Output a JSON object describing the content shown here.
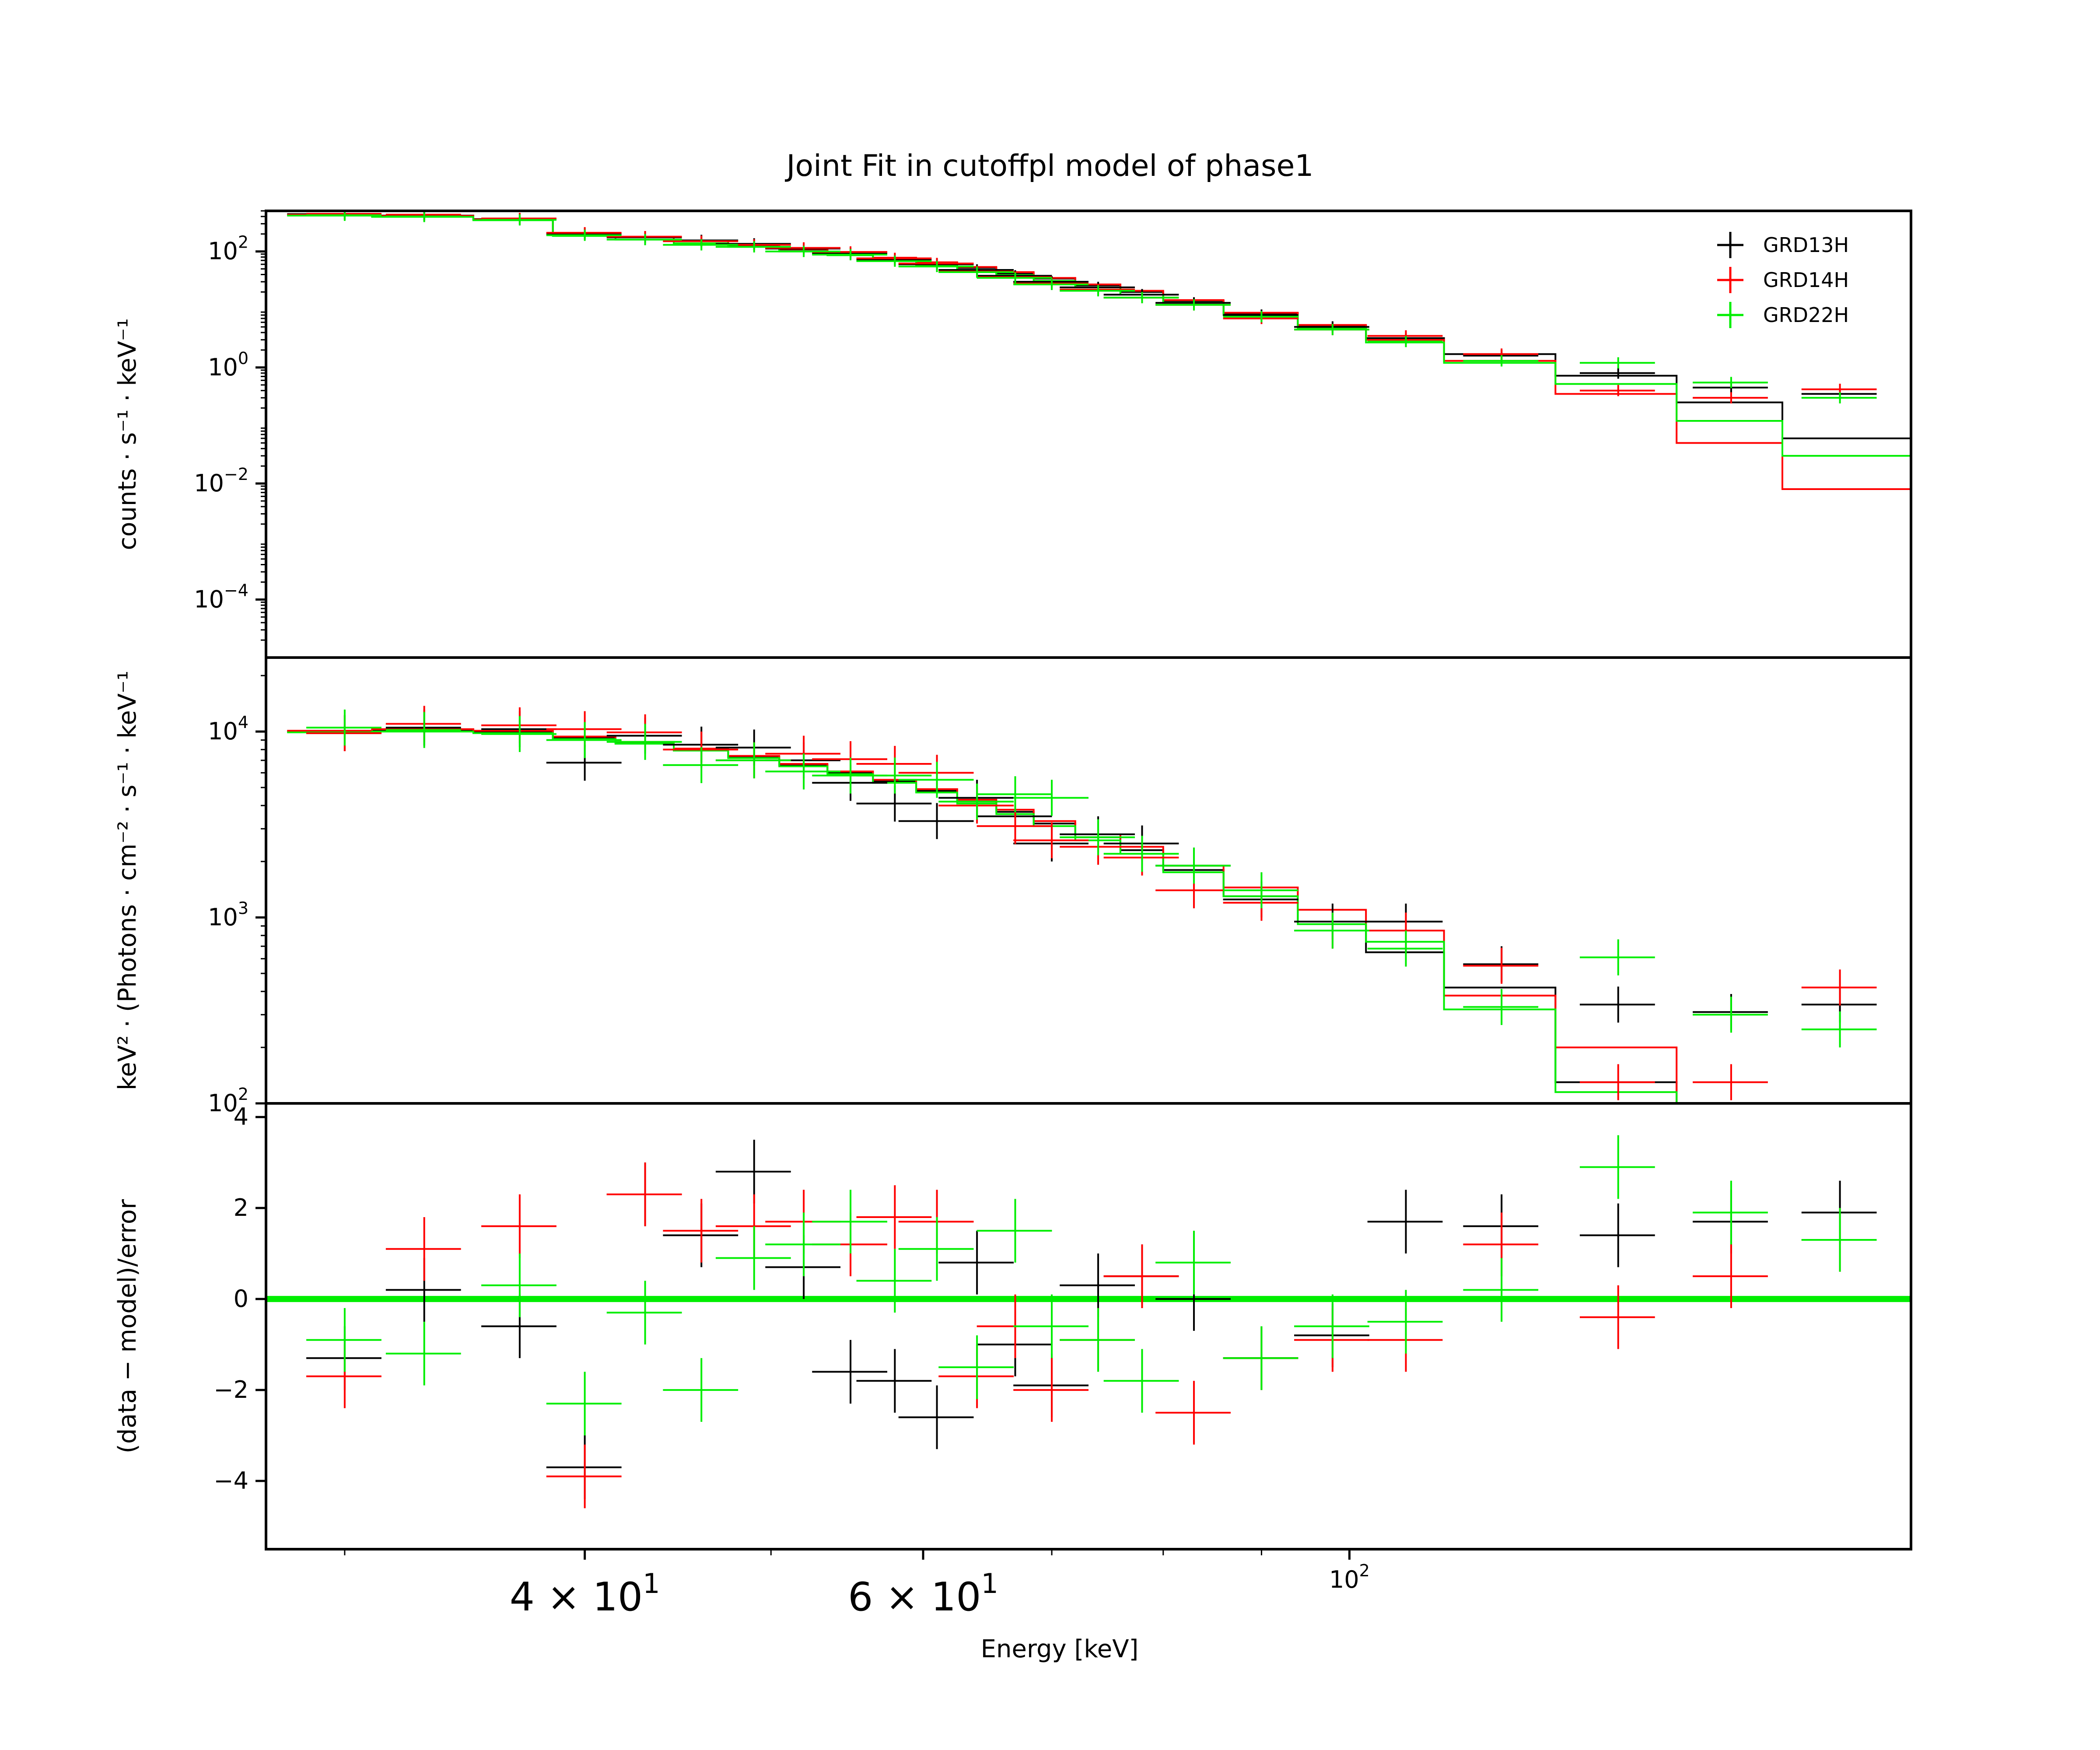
{
  "chart_data": {
    "type": "scatter",
    "title": "Joint Fit  in cutoffpl model of phase1",
    "xlabel": "Energy [keV]",
    "xscale": "log",
    "xlim": [
      27.3,
      196
    ],
    "xticks": [
      {
        "value": 40,
        "mantissa": "4",
        "times": "×",
        "base": "10",
        "exp": "1"
      },
      {
        "value": 60,
        "mantissa": "6",
        "times": "×",
        "base": "10",
        "exp": "1"
      },
      {
        "value": 100,
        "mantissa": "",
        "times": "",
        "base": "10",
        "exp": "2"
      }
    ],
    "colors": {
      "GRD13H": "#000000",
      "GRD14H": "#ff0000",
      "GRD22H": "#00ee00"
    },
    "legend": {
      "placement": "top-right",
      "entries": [
        "GRD13H",
        "GRD14H",
        "GRD22H"
      ]
    },
    "panels": [
      {
        "id": "counts",
        "ylabel": "counts · s⁻¹ · keV⁻¹",
        "yscale": "log",
        "ylim": [
          1e-05,
          500
        ],
        "yticks": [
          {
            "value": 100,
            "base": "10",
            "exp": "2"
          },
          {
            "value": 1,
            "base": "10",
            "exp": "0"
          },
          {
            "value": 0.01,
            "base": "10",
            "exp": "−2"
          },
          {
            "value": 0.0001,
            "base": "10",
            "exp": "−4"
          }
        ],
        "series": [
          {
            "name": "GRD13H",
            "x": [
              30,
              33,
              37,
              40,
              43,
              46,
              49,
              52,
              55,
              58,
              61,
              64,
              67,
              70,
              74,
              78,
              83,
              90,
              98,
              107,
              120,
              138,
              158,
              180
            ],
            "y": [
              440,
              420,
              360,
              200,
              175,
              155,
              135,
              112,
              93,
              72,
              60,
              48,
              38,
              30,
              24,
              18,
              13,
              8,
              5,
              3.2,
              1.6,
              0.8,
              0.45,
              0.35
            ]
          },
          {
            "name": "GRD14H",
            "x": [
              30,
              33,
              37,
              40,
              43,
              46,
              49,
              52,
              55,
              58,
              61,
              64,
              67,
              70,
              74,
              78,
              83,
              90,
              98,
              107,
              120,
              138,
              158,
              180
            ],
            "y": [
              445,
              430,
              370,
              210,
              180,
              150,
              130,
              115,
              98,
              76,
              62,
              45,
              36,
              28,
              22,
              16,
              12,
              7,
              4.5,
              3.5,
              1.7,
              0.4,
              0.3,
              0.42
            ]
          },
          {
            "name": "GRD22H",
            "x": [
              30,
              33,
              37,
              40,
              43,
              46,
              49,
              52,
              55,
              58,
              61,
              64,
              67,
              70,
              74,
              78,
              83,
              90,
              98,
              107,
              120,
              138,
              158,
              180
            ],
            "y": [
              420,
              400,
              350,
              190,
              160,
              130,
              120,
              100,
              88,
              68,
              55,
              44,
              35,
              27,
              21,
              16,
              12,
              7.5,
              4.5,
              2.8,
              1.3,
              1.2,
              0.55,
              0.3
            ]
          }
        ],
        "models": [
          {
            "name": "GRD13H",
            "edges": [
              28,
              31,
              35,
              38.5,
              41.5,
              44.5,
              47.5,
              50.5,
              53.5,
              56.5,
              59.5,
              62.5,
              65.5,
              68.5,
              72,
              76,
              80,
              86,
              94,
              102,
              112,
              128,
              148,
              168,
              196
            ],
            "y": [
              440,
              415,
              360,
              200,
              175,
              150,
              128,
              108,
              92,
              76,
              63,
              52,
              42,
              34,
              26,
              20,
              14,
              8.5,
              5.2,
              3.2,
              1.7,
              0.72,
              0.25,
              0.06
            ]
          },
          {
            "name": "GRD14H",
            "edges": [
              28,
              31,
              35,
              38.5,
              41.5,
              44.5,
              47.5,
              50.5,
              53.5,
              56.5,
              59.5,
              62.5,
              65.5,
              68.5,
              72,
              76,
              80,
              86,
              94,
              102,
              112,
              128,
              148,
              168,
              196
            ],
            "y": [
              430,
              410,
              355,
              205,
              178,
              152,
              130,
              110,
              94,
              78,
              65,
              54,
              44,
              35,
              27,
              21,
              14.5,
              8.8,
              5.4,
              3.0,
              1.3,
              0.35,
              0.05,
              0.008
            ]
          },
          {
            "name": "GRD22H",
            "edges": [
              28,
              31,
              35,
              38.5,
              41.5,
              44.5,
              47.5,
              50.5,
              53.5,
              56.5,
              59.5,
              62.5,
              65.5,
              68.5,
              72,
              76,
              80,
              86,
              94,
              102,
              112,
              128,
              148,
              168,
              196
            ],
            "y": [
              415,
              395,
              345,
              185,
              160,
              138,
              120,
              100,
              86,
              70,
              58,
              48,
              39,
              31,
              24,
              18,
              13,
              8,
              4.8,
              2.7,
              1.2,
              0.52,
              0.12,
              0.03
            ]
          }
        ]
      },
      {
        "id": "unfolded",
        "ylabel": "keV² · (Photons · cm⁻² · s⁻¹ · keV⁻¹",
        "yscale": "log",
        "ylim": [
          100,
          25000
        ],
        "yticks": [
          {
            "value": 10000,
            "base": "10",
            "exp": "4"
          },
          {
            "value": 1000,
            "base": "10",
            "exp": "3"
          },
          {
            "value": 100,
            "base": "10",
            "exp": "2"
          }
        ],
        "series": [
          {
            "name": "GRD13H",
            "x": [
              30,
              33,
              37,
              40,
              43,
              46,
              49,
              52,
              55,
              58,
              61,
              64,
              67,
              70,
              74,
              78,
              83,
              90,
              98,
              107,
              120,
              138,
              158,
              180
            ],
            "y": [
              9800,
              10500,
              10300,
              6800,
              9500,
              8500,
              8200,
              7000,
              5300,
              4100,
              3300,
              4400,
              3500,
              2500,
              2800,
              2500,
              1900,
              1250,
              950,
              950,
              560,
              340,
              310,
              340
            ]
          },
          {
            "name": "GRD14H",
            "x": [
              30,
              33,
              37,
              40,
              43,
              46,
              49,
              52,
              55,
              58,
              61,
              64,
              67,
              70,
              74,
              78,
              83,
              90,
              98,
              107,
              120,
              138,
              158,
              180
            ],
            "y": [
              9800,
              11000,
              10800,
              10300,
              9900,
              8000,
              7000,
              7600,
              7100,
              6700,
              6000,
              4000,
              3100,
              2600,
              2400,
              2100,
              1400,
              1200,
              850,
              850,
              550,
              130,
              130,
              420
            ]
          },
          {
            "name": "GRD22H",
            "x": [
              30,
              33,
              37,
              40,
              43,
              46,
              49,
              52,
              55,
              58,
              61,
              64,
              67,
              70,
              74,
              78,
              83,
              90,
              98,
              107,
              120,
              138,
              158,
              180
            ],
            "y": [
              10500,
              10200,
              9700,
              9000,
              8800,
              6600,
              7000,
              6100,
              5800,
              5800,
              5500,
              4200,
              4600,
              4400,
              2700,
              2200,
              1900,
              1400,
              850,
              680,
              330,
              610,
              300,
              250
            ]
          }
        ],
        "models": [
          {
            "name": "GRD13H",
            "edges": [
              28,
              31,
              35,
              38.5,
              41.5,
              44.5,
              47.5,
              50.5,
              53.5,
              56.5,
              59.5,
              62.5,
              65.5,
              68.5,
              72,
              76,
              80,
              86,
              94,
              102,
              112,
              128,
              148,
              168,
              196
            ],
            "y": [
              10000,
              10200,
              10000,
              9200,
              8700,
              8000,
              7300,
              6600,
              6000,
              5400,
              4800,
              4200,
              3700,
              3200,
              2700,
              2300,
              1800,
              1300,
              950,
              650,
              420,
              130,
              90,
              70
            ]
          },
          {
            "name": "GRD14H",
            "edges": [
              28,
              31,
              35,
              38.5,
              41.5,
              44.5,
              47.5,
              50.5,
              53.5,
              56.5,
              59.5,
              62.5,
              65.5,
              68.5,
              72,
              76,
              80,
              86,
              94,
              102,
              112,
              128,
              148,
              168,
              196
            ],
            "y": [
              10100,
              10300,
              10100,
              9400,
              8800,
              8100,
              7400,
              6700,
              6100,
              5500,
              4900,
              4300,
              3800,
              3300,
              2800,
              2400,
              1900,
              1450,
              1100,
              850,
              380,
              200,
              70,
              50
            ]
          },
          {
            "name": "GRD22H",
            "edges": [
              28,
              31,
              35,
              38.5,
              41.5,
              44.5,
              47.5,
              50.5,
              53.5,
              56.5,
              59.5,
              62.5,
              65.5,
              68.5,
              72,
              76,
              80,
              86,
              94,
              102,
              112,
              128,
              148,
              168,
              196
            ],
            "y": [
              9900,
              10000,
              9800,
              9100,
              8600,
              7900,
              7200,
              6500,
              5900,
              5300,
              4700,
              4100,
              3600,
              3100,
              2600,
              2200,
              1750,
              1300,
              920,
              740,
              320,
              115,
              60,
              40
            ]
          }
        ]
      },
      {
        "id": "residuals",
        "ylabel": "(data − model)/error",
        "yscale": "linear",
        "ylim": [
          -5.5,
          4.3
        ],
        "yticks": [
          {
            "value": 4,
            "label": "4"
          },
          {
            "value": 2,
            "label": "2"
          },
          {
            "value": 0,
            "label": "0"
          },
          {
            "value": -2,
            "label": "−2"
          },
          {
            "value": -4,
            "label": "−4"
          }
        ],
        "series": [
          {
            "name": "GRD13H",
            "x": [
              30,
              33,
              37,
              40,
              43,
              46,
              49,
              52,
              55,
              58,
              61,
              64,
              67,
              70,
              74,
              78,
              83,
              90,
              98,
              107,
              120,
              138,
              158,
              180
            ],
            "y": [
              -1.3,
              0.2,
              -0.6,
              -3.7,
              2.3,
              1.4,
              2.8,
              0.7,
              -1.6,
              -1.8,
              -2.6,
              0.8,
              -1.0,
              -1.9,
              0.3,
              0.5,
              0.0,
              -1.3,
              -0.8,
              1.7,
              1.6,
              1.4,
              1.7,
              1.9
            ]
          },
          {
            "name": "GRD14H",
            "x": [
              30,
              33,
              37,
              40,
              43,
              46,
              49,
              52,
              55,
              58,
              61,
              64,
              67,
              70,
              74,
              78,
              83,
              90,
              98,
              107,
              120,
              138,
              158,
              180
            ],
            "y": [
              -1.7,
              1.1,
              1.6,
              -3.9,
              2.3,
              1.5,
              1.6,
              1.7,
              1.2,
              1.8,
              1.7,
              -1.7,
              -0.6,
              -2.0,
              -0.9,
              0.5,
              -2.5,
              -1.3,
              -0.9,
              -0.9,
              1.2,
              -0.4,
              0.5,
              1.3
            ]
          },
          {
            "name": "GRD22H",
            "x": [
              30,
              33,
              37,
              40,
              43,
              46,
              49,
              52,
              55,
              58,
              61,
              64,
              67,
              70,
              74,
              78,
              83,
              90,
              98,
              107,
              120,
              138,
              158,
              180
            ],
            "y": [
              -0.9,
              -1.2,
              0.3,
              -2.3,
              -0.3,
              -2.0,
              0.9,
              1.2,
              1.7,
              0.4,
              1.1,
              -1.5,
              1.5,
              -0.6,
              -0.9,
              -1.8,
              0.8,
              -1.3,
              -0.6,
              -0.5,
              0.2,
              2.9,
              1.9,
              1.3
            ]
          }
        ]
      }
    ]
  }
}
